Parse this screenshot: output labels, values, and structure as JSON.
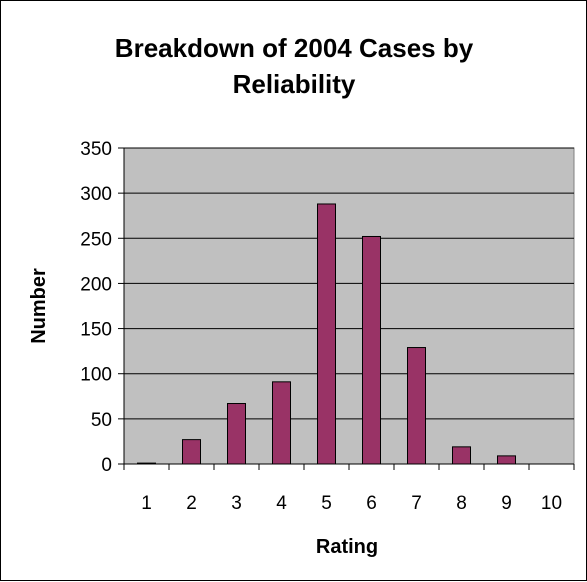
{
  "chart_data": {
    "type": "bar",
    "title_lines": [
      "Breakdown of 2004 Cases by",
      "Reliability"
    ],
    "xlabel": "Rating",
    "ylabel": "Number",
    "categories": [
      "1",
      "2",
      "3",
      "4",
      "5",
      "6",
      "7",
      "8",
      "9",
      "10"
    ],
    "values": [
      1,
      27,
      67,
      91,
      288,
      252,
      129,
      19,
      9,
      0
    ],
    "ylim": [
      0,
      350
    ],
    "yticks": [
      0,
      50,
      100,
      150,
      200,
      250,
      300,
      350
    ],
    "grid": true,
    "legend": "none",
    "colors": {
      "bar": "#993366",
      "plot_background": "#c0c0c0",
      "gridline": "#000000"
    }
  }
}
